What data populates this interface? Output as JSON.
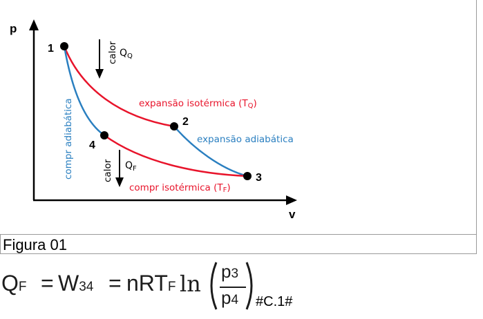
{
  "diagram": {
    "axis_labels": {
      "y": "p",
      "x": "v"
    },
    "points": [
      {
        "id": "1",
        "label": "1"
      },
      {
        "id": "2",
        "label": "2"
      },
      {
        "id": "3",
        "label": "3"
      },
      {
        "id": "4",
        "label": "4"
      }
    ],
    "curves": [
      {
        "name": "expansão isotérmica (TQ)",
        "from": "1",
        "to": "2",
        "color": "#e8142b"
      },
      {
        "name": "expansão adiabática",
        "from": "2",
        "to": "3",
        "color": "#2a7fc0"
      },
      {
        "name": "compr isotérmica (TF)",
        "from": "3",
        "to": "4",
        "color": "#e8142b"
      },
      {
        "name": "compr adiabática",
        "from": "4",
        "to": "1",
        "color": "#2a7fc0"
      }
    ],
    "labels": {
      "iso_expansion_main": "expansão isotérmica (T",
      "iso_expansion_sub": "Q",
      "iso_expansion_close": ")",
      "adi_expansion": "expansão adiabática",
      "adi_compression": "compr adiabática",
      "iso_compression_main": "compr isotérmica (T",
      "iso_compression_sub": "F",
      "iso_compression_close": ")",
      "heat_in_word": "calor",
      "heat_in_symbol": "Q",
      "heat_in_sub": "Q",
      "heat_out_word": "calor",
      "heat_out_symbol": "Q",
      "heat_out_sub": "F"
    },
    "colors": {
      "red": "#e8142b",
      "blue": "#2a7fc0",
      "black": "#000000"
    }
  },
  "caption": "Figura 01",
  "equation": {
    "lhs": "Q",
    "lhs_sub": "F",
    "eq1": "=",
    "work": "W",
    "work_sub": "34",
    "eq2": "=",
    "nrt": "nRT",
    "nrt_sub": "F",
    "ln": "ln",
    "num": "p",
    "num_sub": "3",
    "den": "p",
    "den_sub": "4",
    "reference": "#C.1#"
  }
}
